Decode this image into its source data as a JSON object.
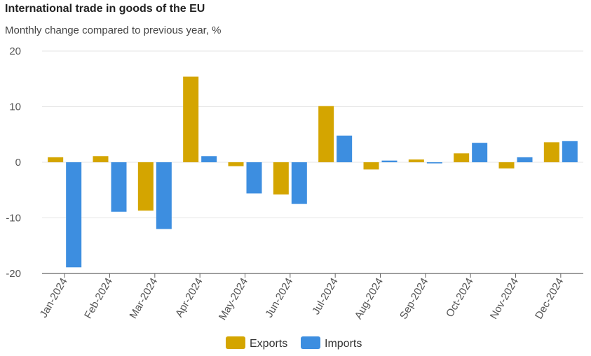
{
  "chart_data": {
    "type": "bar",
    "title": "International trade in goods of the EU",
    "subtitle": "Monthly change compared to previous year, %",
    "xlabel": "",
    "ylabel": "",
    "ylim": [
      -20,
      20
    ],
    "yticks": [
      20,
      10,
      0,
      -10,
      -20
    ],
    "grid": true,
    "legend_position": "bottom-center",
    "categories": [
      "Jan-2024",
      "Feb-2024",
      "Mar-2024",
      "Apr-2024",
      "May-2024",
      "Jun-2024",
      "Jul-2024",
      "Aug-2024",
      "Sep-2024",
      "Oct-2024",
      "Nov-2024",
      "Dec-2024"
    ],
    "series": [
      {
        "name": "Exports",
        "color": "#d4a500",
        "values": [
          0.9,
          1.1,
          -8.7,
          15.4,
          -0.7,
          -5.8,
          10.1,
          -1.3,
          0.5,
          1.6,
          -1.1,
          3.6
        ]
      },
      {
        "name": "Imports",
        "color": "#3d8ee0",
        "values": [
          -18.9,
          -8.9,
          -12.0,
          1.1,
          -5.6,
          -7.5,
          4.8,
          0.3,
          -0.2,
          3.5,
          0.9,
          3.8
        ]
      }
    ]
  }
}
